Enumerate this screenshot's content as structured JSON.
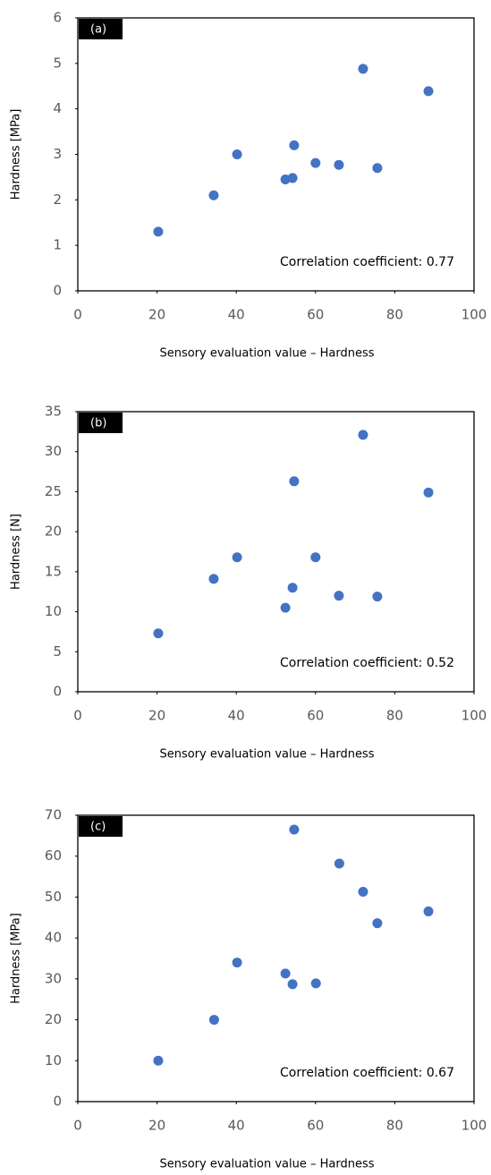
{
  "chart_data": [
    {
      "type": "scatter",
      "label": "(a)",
      "ylabel": "Hardness [MPa]",
      "xlabel": "Sensory evaluation value – Hardness",
      "annotation": "Correlation coefficient: 0.77",
      "color": "#4472c4",
      "x": [
        20.3,
        34.3,
        40.2,
        52.4,
        54.2,
        54.6,
        60,
        65.9,
        72,
        75.6,
        88.5
      ],
      "values": [
        1.3,
        2.1,
        3.0,
        2.45,
        2.48,
        3.2,
        2.81,
        2.77,
        4.88,
        2.7,
        4.39
      ],
      "xlim": [
        0,
        100
      ],
      "xticks": [
        0,
        20,
        40,
        60,
        80,
        100
      ],
      "ylim": [
        0,
        6
      ],
      "yticks": [
        0,
        1,
        2,
        3,
        4,
        5,
        6
      ]
    },
    {
      "type": "scatter",
      "label": "(b)",
      "ylabel": "Hardness [N]",
      "xlabel": "Sensory evaluation value – Hardness",
      "annotation": "Correlation coefficient: 0.52",
      "color": "#4472c4",
      "x": [
        20.3,
        34.3,
        40.2,
        52.4,
        54.2,
        54.6,
        60,
        65.9,
        72,
        75.6,
        88.5
      ],
      "values": [
        7.3,
        14.1,
        16.8,
        10.5,
        13.0,
        26.3,
        16.8,
        12.0,
        32.1,
        11.9,
        24.9
      ],
      "xlim": [
        0,
        100
      ],
      "xticks": [
        0,
        20,
        40,
        60,
        80,
        100
      ],
      "ylim": [
        0,
        35
      ],
      "yticks": [
        0,
        5,
        10,
        15,
        20,
        25,
        30,
        35
      ]
    },
    {
      "type": "scatter",
      "label": "(c)",
      "ylabel": "Hardness [MPa]",
      "xlabel": "Sensory evaluation value – Hardness",
      "annotation": "Correlation coefficient: 0.67",
      "color": "#4472c4",
      "x": [
        20.3,
        34.4,
        40.2,
        52.4,
        54.2,
        54.6,
        60.1,
        66,
        72,
        75.6,
        88.5
      ],
      "values": [
        10,
        20,
        34,
        31.3,
        28.7,
        66.5,
        28.9,
        58.2,
        51.3,
        43.6,
        46.5
      ],
      "xlim": [
        0,
        100
      ],
      "xticks": [
        0,
        20,
        40,
        60,
        80,
        100
      ],
      "ylim": [
        0,
        70
      ],
      "yticks": [
        0,
        10,
        20,
        30,
        40,
        50,
        60,
        70
      ]
    }
  ]
}
